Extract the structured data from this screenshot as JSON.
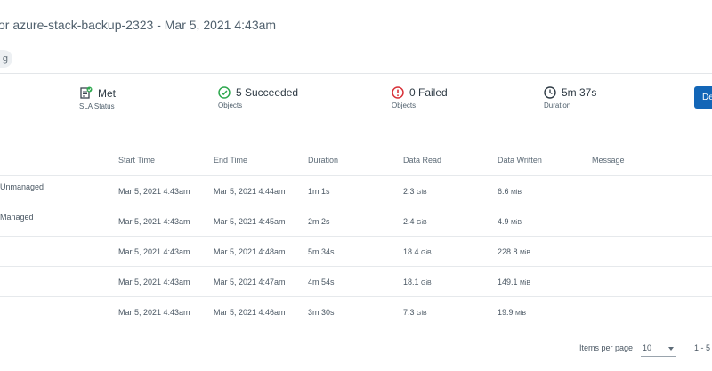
{
  "header": {
    "title": "or azure-stack-backup-2323 - Mar 5, 2021 4:43am",
    "chip": "g"
  },
  "stats": [
    {
      "value": "Met",
      "label": "SLA Status"
    },
    {
      "value": "5 Succeeded",
      "label": "Objects"
    },
    {
      "value": "0 Failed",
      "label": "Objects"
    },
    {
      "value": "5m 37s",
      "label": "Duration"
    }
  ],
  "action_button": "De",
  "table": {
    "columns": [
      "Start Time",
      "End Time",
      "Duration",
      "Data Read",
      "Data Written",
      "Message"
    ],
    "rows": [
      {
        "name": "Unmanaged",
        "start": "Mar 5, 2021 4:43am",
        "end": "Mar 5, 2021 4:44am",
        "duration": "1m 1s",
        "read_num": "2.3",
        "read_unit": "GiB",
        "written_num": "6.6",
        "written_unit": "MiB",
        "message": ""
      },
      {
        "name": "Managed",
        "start": "Mar 5, 2021 4:43am",
        "end": "Mar 5, 2021 4:45am",
        "duration": "2m 2s",
        "read_num": "2.4",
        "read_unit": "GiB",
        "written_num": "4.9",
        "written_unit": "MiB",
        "message": ""
      },
      {
        "name": "",
        "start": "Mar 5, 2021 4:43am",
        "end": "Mar 5, 2021 4:48am",
        "duration": "5m 34s",
        "read_num": "18.4",
        "read_unit": "GiB",
        "written_num": "228.8",
        "written_unit": "MiB",
        "message": ""
      },
      {
        "name": "",
        "start": "Mar 5, 2021 4:43am",
        "end": "Mar 5, 2021 4:47am",
        "duration": "4m 54s",
        "read_num": "18.1",
        "read_unit": "GiB",
        "written_num": "149.1",
        "written_unit": "MiB",
        "message": ""
      },
      {
        "name": "",
        "start": "Mar 5, 2021 4:43am",
        "end": "Mar 5, 2021 4:46am",
        "duration": "3m 30s",
        "read_num": "7.3",
        "read_unit": "GiB",
        "written_num": "19.9",
        "written_unit": "MiB",
        "message": ""
      }
    ]
  },
  "pagination": {
    "items_label": "Items per page",
    "per_page": "10",
    "range": "1 - 5"
  }
}
